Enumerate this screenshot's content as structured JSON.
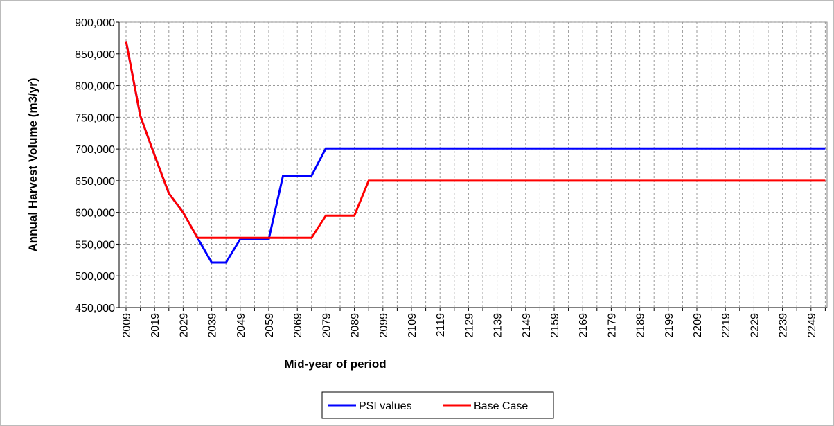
{
  "chart_data": {
    "type": "line",
    "x_label": "Mid-year of period",
    "y_label": "Annual Harvest Volume (m3/yr)",
    "categories": [
      "2009",
      null,
      "2019",
      null,
      "2029",
      null,
      "2039",
      null,
      "2049",
      null,
      "2059",
      null,
      "2069",
      null,
      "2079",
      null,
      "2089",
      null,
      "2099",
      null,
      "2109",
      null,
      "2119",
      null,
      "2129",
      null,
      "2139",
      null,
      "2149",
      null,
      "2159",
      null,
      "2169",
      null,
      "2179",
      null,
      "2189",
      null,
      "2199",
      null,
      "2209",
      null,
      "2219",
      null,
      "2229",
      null,
      "2239",
      null,
      "2249",
      null
    ],
    "series": [
      {
        "name": "PSI values",
        "color": "#0000ff",
        "values": [
          870000,
          752000,
          690000,
          630000,
          600000,
          560000,
          521000,
          521000,
          558000,
          558000,
          558000,
          658000,
          658000,
          658000,
          701000,
          701000,
          701000,
          701000,
          701000,
          701000,
          701000,
          701000,
          701000,
          701000,
          701000,
          701000,
          701000,
          701000,
          701000,
          701000,
          701000,
          701000,
          701000,
          701000,
          701000,
          701000,
          701000,
          701000,
          701000,
          701000,
          701000,
          701000,
          701000,
          701000,
          701000,
          701000,
          701000,
          701000,
          701000,
          701000
        ]
      },
      {
        "name": "Base Case",
        "color": "#ff0000",
        "values": [
          870000,
          752000,
          690000,
          630000,
          600000,
          560000,
          560000,
          560000,
          560000,
          560000,
          560000,
          560000,
          560000,
          560000,
          595000,
          595000,
          595000,
          650000,
          650000,
          650000,
          650000,
          650000,
          650000,
          650000,
          650000,
          650000,
          650000,
          650000,
          650000,
          650000,
          650000,
          650000,
          650000,
          650000,
          650000,
          650000,
          650000,
          650000,
          650000,
          650000,
          650000,
          650000,
          650000,
          650000,
          650000,
          650000,
          650000,
          650000,
          650000,
          650000
        ]
      }
    ],
    "ylim": [
      450000,
      900000
    ],
    "yticks": [
      {
        "value": 450000,
        "label": "450,000"
      },
      {
        "value": 500000,
        "label": "500,000"
      },
      {
        "value": 550000,
        "label": "550,000"
      },
      {
        "value": 600000,
        "label": "600,000"
      },
      {
        "value": 650000,
        "label": "650,000"
      },
      {
        "value": 700000,
        "label": "700,000"
      },
      {
        "value": 750000,
        "label": "750,000"
      },
      {
        "value": 800000,
        "label": "800,000"
      },
      {
        "value": 850000,
        "label": "850,000"
      },
      {
        "value": 900000,
        "label": "900,000"
      }
    ],
    "grid": true,
    "legend": "bottom"
  }
}
